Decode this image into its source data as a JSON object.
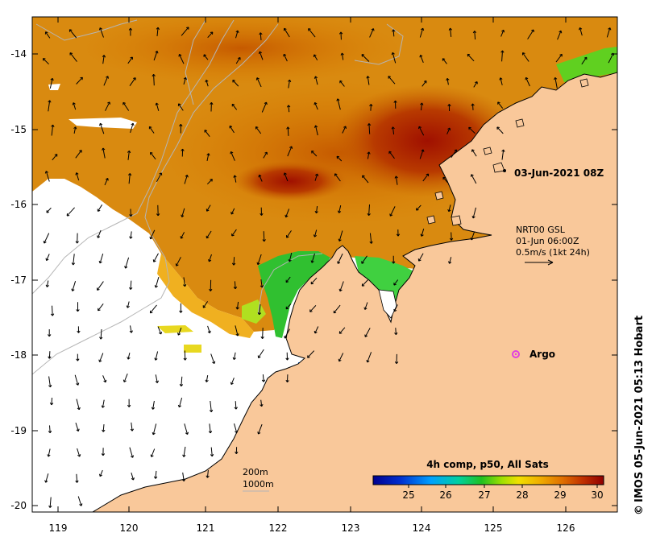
{
  "map": {
    "lon_labels": [
      "119",
      "120",
      "121",
      "122",
      "123",
      "124",
      "125",
      "126"
    ],
    "lat_labels": [
      "-14",
      "-15",
      "-16",
      "-17",
      "-18",
      "-19",
      "-20"
    ],
    "timestamp_label": "03-Jun-2021 08Z",
    "current_legend": {
      "line1": "NRT00 GSL",
      "line2": "01-Jun 06:00Z",
      "line3": "0.5m/s (1kt 24h)"
    },
    "argo_label": "Argo",
    "isobaths": {
      "line1": "200m",
      "line2": "1000m"
    },
    "colorbar": {
      "title": "4h comp, p50, All Sats",
      "ticks": [
        "25",
        "26",
        "27",
        "28",
        "29",
        "30"
      ]
    },
    "credit": "IMOS 05-Jun-2021 05:13 Hobart",
    "copyright_symbol": "©"
  },
  "colors": {
    "land": "#f9c89a",
    "coastline": "#000000",
    "contour": "#b5b5b5",
    "argo": "#e040e0",
    "ocean_bg": "#ffffff"
  }
}
